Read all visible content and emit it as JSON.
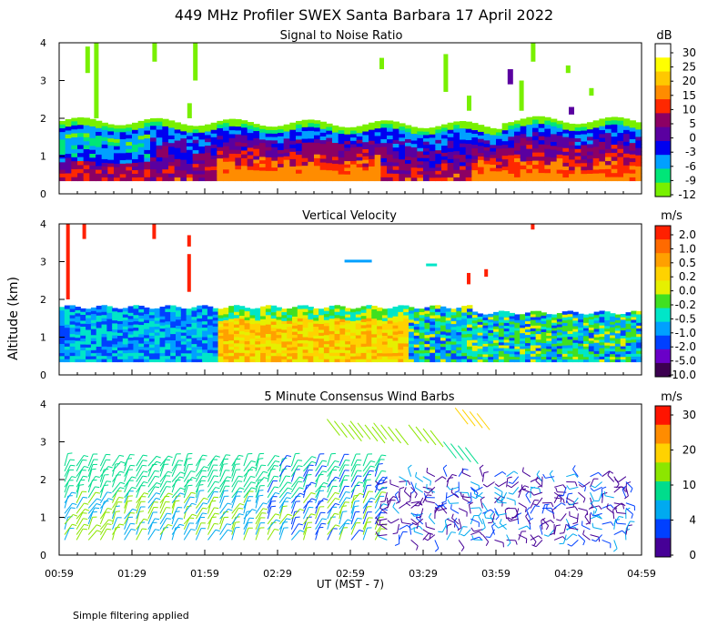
{
  "title": "449 MHz Profiler SWEX Santa Barbara 17 April 2022",
  "footnote": "Simple filtering applied",
  "ylabel": "Altitude (km)",
  "xlabel": "UT  (MST - 7)",
  "chart_data": [
    {
      "type": "heatmap",
      "title": "Signal to Noise Ratio",
      "units": "dB",
      "x_ticks": [
        "00:59",
        "01:29",
        "01:59",
        "02:29",
        "02:59",
        "03:29",
        "03:59",
        "04:29",
        "04:59"
      ],
      "x_range_hours": [
        0.983,
        4.983
      ],
      "ylim": [
        0,
        4
      ],
      "y_ticks": [
        "0",
        "1",
        "2",
        "3",
        "4"
      ],
      "colorbar_labels": [
        "30",
        "25",
        "20",
        "15",
        "10",
        "5",
        "0",
        "-3",
        "-6",
        "-9",
        "-12"
      ],
      "colorbar_colors": [
        "#ffffff",
        "#ffff00",
        "#ffc800",
        "#ff8c00",
        "#ff2800",
        "#8c0064",
        "#5a00a0",
        "#0000f0",
        "#00a0ff",
        "#00e678",
        "#78f000"
      ],
      "layer_top_km": 1.85
    },
    {
      "type": "heatmap",
      "title": "Vertical Velocity",
      "units": "m/s",
      "x_ticks": [
        "00:59",
        "01:29",
        "01:59",
        "02:29",
        "02:59",
        "03:29",
        "03:59",
        "04:29",
        "04:59"
      ],
      "ylim": [
        0,
        4
      ],
      "y_ticks": [
        "0",
        "1",
        "2",
        "3",
        "4"
      ],
      "colorbar_labels": [
        "2.0",
        "1.0",
        "0.5",
        "0.2",
        "0.0",
        "-0.2",
        "-0.5",
        "-1.0",
        "-2.0",
        "-5.0",
        "-10.0"
      ],
      "colorbar_colors": [
        "#ff2000",
        "#ff6a00",
        "#ffa000",
        "#ffd200",
        "#e6f000",
        "#40e020",
        "#00e6c8",
        "#00a0ff",
        "#0040ff",
        "#6a00c8",
        "#3c0050"
      ],
      "layer_top_km": 1.8
    },
    {
      "type": "scatter",
      "title": "5 Minute Consensus Wind Barbs",
      "units": "m/s",
      "x_ticks": [
        "00:59",
        "01:29",
        "01:59",
        "02:29",
        "02:59",
        "03:29",
        "03:59",
        "04:29",
        "04:59"
      ],
      "ylim": [
        0,
        4
      ],
      "y_ticks": [
        "0",
        "1",
        "2",
        "3",
        "4"
      ],
      "colorbar_labels": [
        "30",
        "20",
        "10",
        "4",
        "0"
      ],
      "colorbar_colors": [
        "#ff1400",
        "#ff8c00",
        "#ffd200",
        "#8ce600",
        "#00dc8c",
        "#00aaf0",
        "#0040ff",
        "#460096"
      ],
      "barb_top_km": 2.4
    }
  ]
}
